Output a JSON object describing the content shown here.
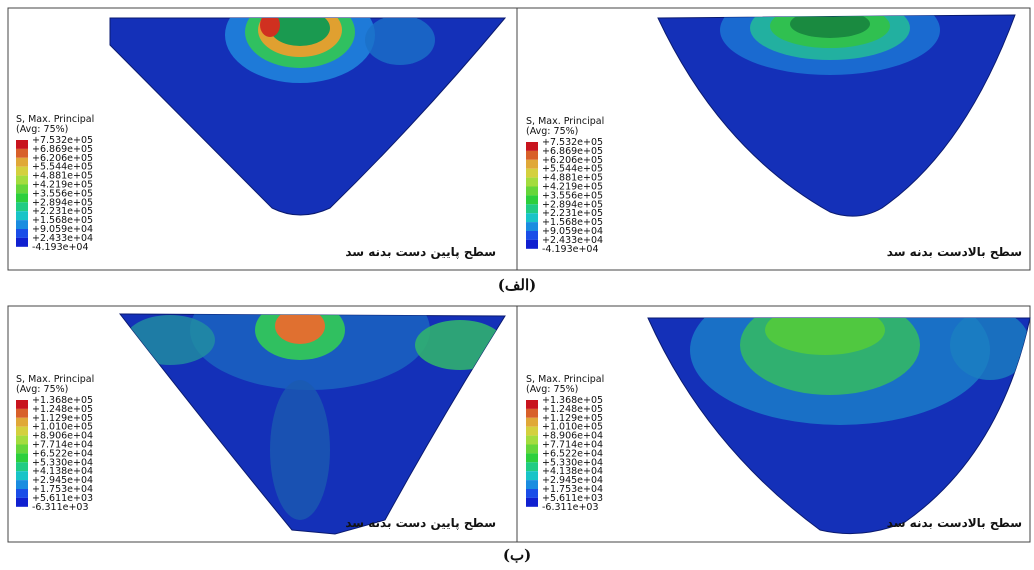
{
  "figure": {
    "rows": [
      {
        "label": "(الف)",
        "panels": [
          {
            "caption": "سطح پایین دست بدنه سد",
            "legend": {
              "title": "S, Max. Principal",
              "subtitle": "(Avg: 75%)",
              "entries": [
                "+7.532e+05",
                "+6.869e+05",
                "+6.206e+05",
                "+5.544e+05",
                "+4.881e+05",
                "+4.219e+05",
                "+3.556e+05",
                "+2.894e+05",
                "+2.231e+05",
                "+1.568e+05",
                "+9.059e+04",
                "+2.433e+04",
                "-4.193e+04"
              ]
            }
          },
          {
            "caption": "سطح بالادست بدنه سد",
            "legend": {
              "title": "S, Max. Principal",
              "subtitle": "(Avg: 75%)",
              "entries": [
                "+7.532e+05",
                "+6.869e+05",
                "+6.206e+05",
                "+5.544e+05",
                "+4.881e+05",
                "+4.219e+05",
                "+3.556e+05",
                "+2.894e+05",
                "+2.231e+05",
                "+1.568e+05",
                "+9.059e+04",
                "+2.433e+04",
                "-4.193e+04"
              ]
            }
          }
        ]
      },
      {
        "label": "(ب)",
        "panels": [
          {
            "caption": "سطح پایین دست بدنه سد",
            "legend": {
              "title": "S, Max. Principal",
              "subtitle": "(Avg: 75%)",
              "entries": [
                "+1.368e+05",
                "+1.248e+05",
                "+1.129e+05",
                "+1.010e+05",
                "+8.906e+04",
                "+7.714e+04",
                "+6.522e+04",
                "+5.330e+04",
                "+4.138e+04",
                "+2.945e+04",
                "+1.753e+04",
                "+5.611e+03",
                "-6.311e+03"
              ]
            }
          },
          {
            "caption": "سطح بالادست بدنه سد",
            "legend": {
              "title": "S, Max. Principal",
              "subtitle": "(Avg: 75%)",
              "entries": [
                "+1.368e+05",
                "+1.248e+05",
                "+1.129e+05",
                "+1.010e+05",
                "+8.906e+04",
                "+7.714e+04",
                "+6.522e+04",
                "+5.330e+04",
                "+4.138e+04",
                "+2.945e+04",
                "+1.753e+04",
                "+5.611e+03",
                "-6.311e+03"
              ]
            }
          }
        ]
      }
    ]
  }
}
